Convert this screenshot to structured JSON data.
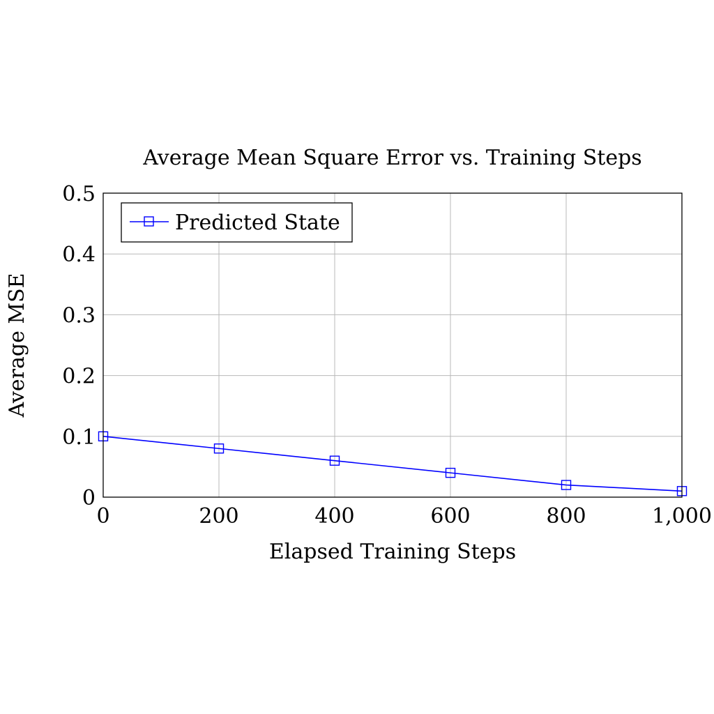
{
  "chart_data": {
    "type": "line",
    "title": "Average Mean Square Error vs. Training Steps",
    "xlabel": "Elapsed Training Steps",
    "ylabel": "Average MSE",
    "xlim": [
      0,
      1000
    ],
    "ylim": [
      0,
      0.5
    ],
    "x_ticks": [
      0,
      200,
      400,
      600,
      800,
      1000
    ],
    "x_tick_labels": [
      "0",
      "200",
      "400",
      "600",
      "800",
      "1,000"
    ],
    "y_ticks": [
      0,
      0.1,
      0.2,
      0.3,
      0.4,
      0.5
    ],
    "y_tick_labels": [
      "0",
      "0.1",
      "0.2",
      "0.3",
      "0.4",
      "0.5"
    ],
    "grid": true,
    "legend_position": "top-left",
    "series": [
      {
        "name": "Predicted State",
        "color": "#0000ff",
        "marker": "square",
        "x": [
          0,
          200,
          400,
          600,
          800,
          1000
        ],
        "y": [
          0.1,
          0.08,
          0.06,
          0.04,
          0.02,
          0.01
        ]
      }
    ]
  }
}
